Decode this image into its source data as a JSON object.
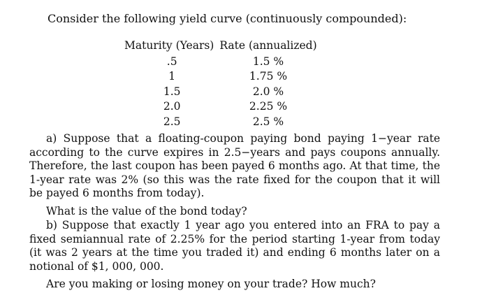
{
  "intro": "Consider the following yield curve (continuously compounded):",
  "table": {
    "headers": [
      "Maturity (Years)",
      "Rate (annualized)"
    ],
    "rows": [
      {
        "maturity": ".5",
        "rate": "1.5 %"
      },
      {
        "maturity": "1",
        "rate": "1.75 %"
      },
      {
        "maturity": "1.5",
        "rate": "2.0 %"
      },
      {
        "maturity": "2.0",
        "rate": "2.25 %"
      },
      {
        "maturity": "2.5",
        "rate": "2.5 %"
      }
    ]
  },
  "part_a": {
    "text": "a) Suppose that a floating-coupon paying bond paying 1−year rate according to the curve expires in 2.5−years and pays coupons annually. Therefore, the last coupon has been payed 6 months ago. At that time, the 1-year rate was 2% (so this was the rate fixed for the coupon that it will be payed 6 months from today).",
    "question": "What is the value of the bond today?"
  },
  "part_b": {
    "text": "b) Suppose that exactly 1 year ago you entered into an FRA to pay a fixed semiannual rate of 2.25% for the period starting 1-year from today (it was 2 years at the time you traded it) and ending 6 months later on a notional of $1, 000, 000.",
    "question": "Are you making or losing money on your trade? How much?"
  }
}
